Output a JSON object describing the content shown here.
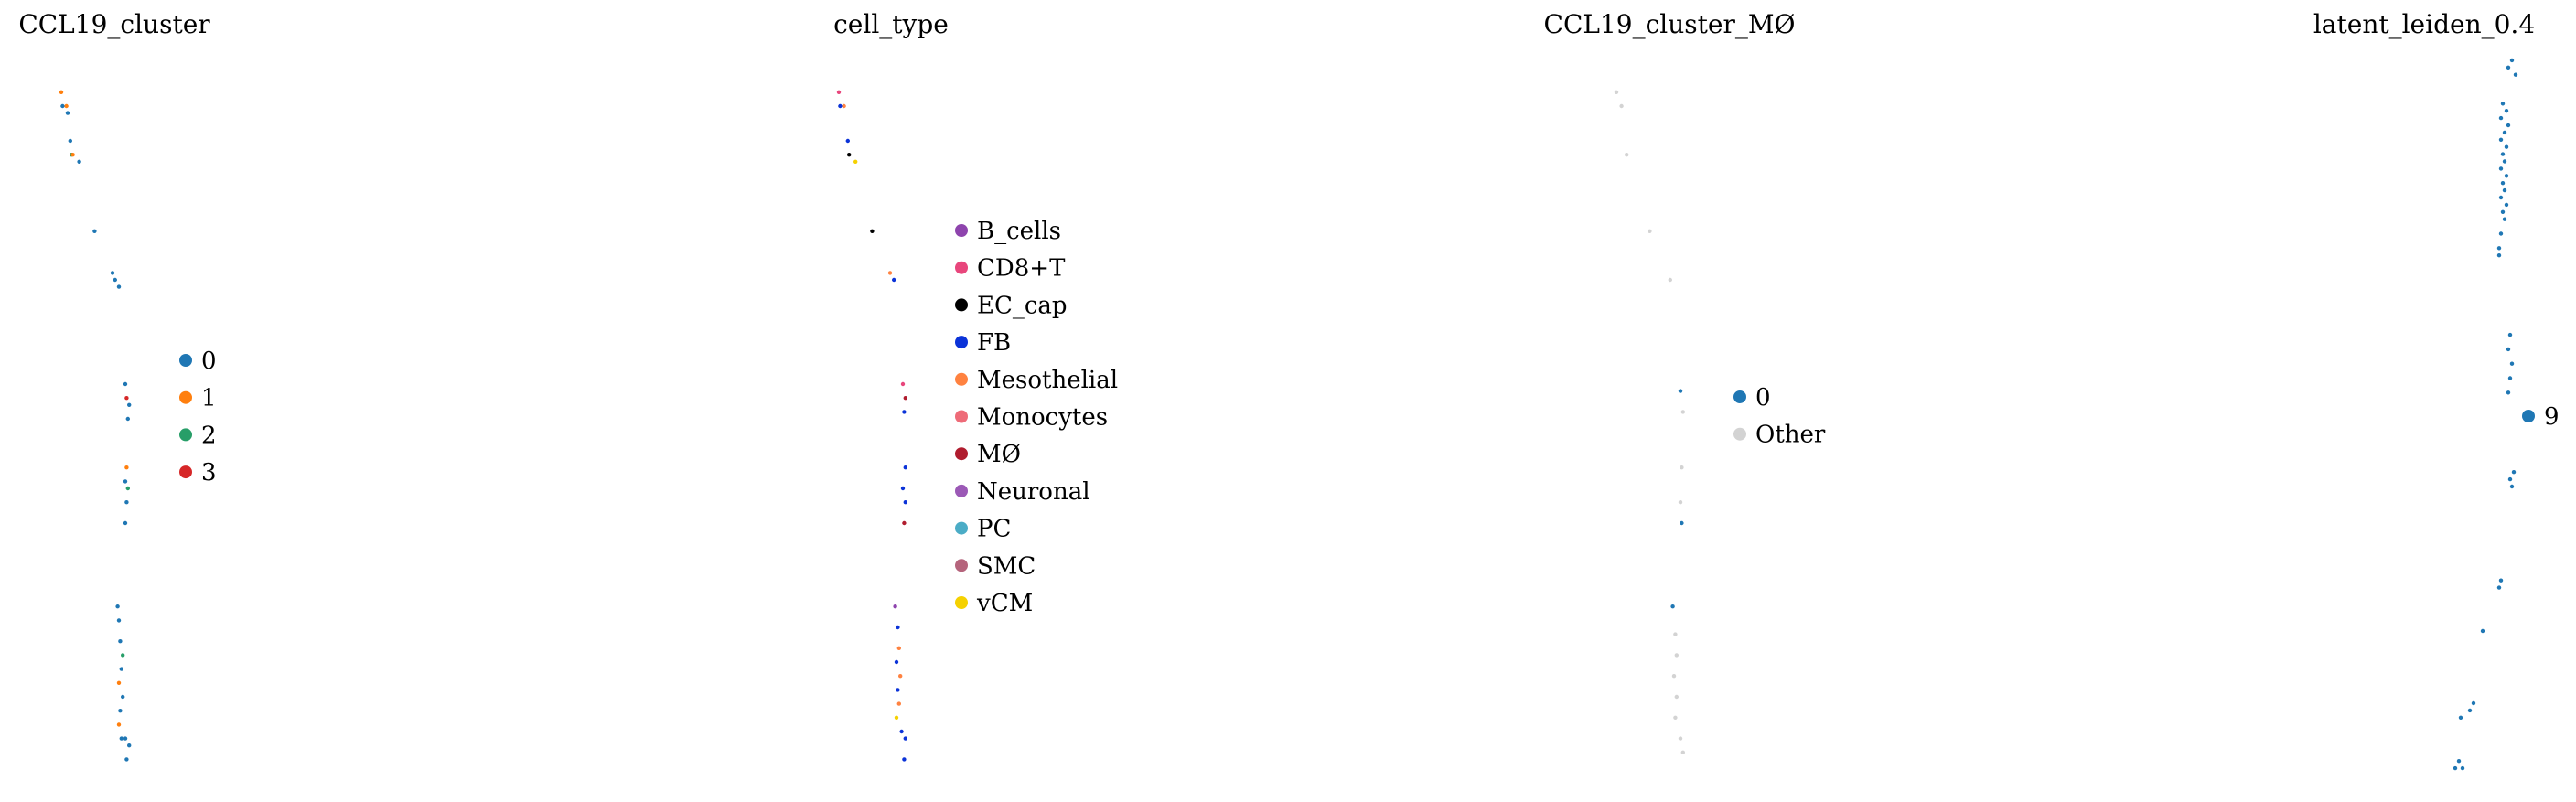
{
  "chart_data": [
    {
      "type": "scatter",
      "title": "CCL19_cluster",
      "legend": {
        "placement": "right",
        "entries": [
          {
            "label": "0",
            "color": "#1f77b4"
          },
          {
            "label": "1",
            "color": "#ff7f0e"
          },
          {
            "label": "2",
            "color": "#279e68"
          },
          {
            "label": "3",
            "color": "#d62728"
          }
        ]
      },
      "axes": "off",
      "grid": false,
      "xlim": [
        0,
        1
      ],
      "ylim": [
        0,
        1
      ],
      "points": [
        {
          "x": 0.05,
          "y": 0.97,
          "group": "1"
        },
        {
          "x": 0.06,
          "y": 0.95,
          "group": "0"
        },
        {
          "x": 0.09,
          "y": 0.95,
          "group": "1"
        },
        {
          "x": 0.1,
          "y": 0.94,
          "group": "0"
        },
        {
          "x": 0.12,
          "y": 0.9,
          "group": "0"
        },
        {
          "x": 0.13,
          "y": 0.88,
          "group": "2"
        },
        {
          "x": 0.14,
          "y": 0.88,
          "group": "1"
        },
        {
          "x": 0.19,
          "y": 0.87,
          "group": "0"
        },
        {
          "x": 0.31,
          "y": 0.77,
          "group": "0"
        },
        {
          "x": 0.45,
          "y": 0.71,
          "group": "0"
        },
        {
          "x": 0.47,
          "y": 0.7,
          "group": "0"
        },
        {
          "x": 0.5,
          "y": 0.69,
          "group": "0"
        },
        {
          "x": 0.55,
          "y": 0.55,
          "group": "0"
        },
        {
          "x": 0.56,
          "y": 0.53,
          "group": "3"
        },
        {
          "x": 0.58,
          "y": 0.52,
          "group": "0"
        },
        {
          "x": 0.57,
          "y": 0.5,
          "group": "0"
        },
        {
          "x": 0.56,
          "y": 0.43,
          "group": "1"
        },
        {
          "x": 0.55,
          "y": 0.41,
          "group": "0"
        },
        {
          "x": 0.57,
          "y": 0.4,
          "group": "2"
        },
        {
          "x": 0.56,
          "y": 0.38,
          "group": "0"
        },
        {
          "x": 0.55,
          "y": 0.35,
          "group": "0"
        },
        {
          "x": 0.49,
          "y": 0.23,
          "group": "0"
        },
        {
          "x": 0.5,
          "y": 0.21,
          "group": "0"
        },
        {
          "x": 0.51,
          "y": 0.18,
          "group": "0"
        },
        {
          "x": 0.53,
          "y": 0.16,
          "group": "2"
        },
        {
          "x": 0.52,
          "y": 0.14,
          "group": "0"
        },
        {
          "x": 0.5,
          "y": 0.12,
          "group": "1"
        },
        {
          "x": 0.53,
          "y": 0.1,
          "group": "0"
        },
        {
          "x": 0.51,
          "y": 0.08,
          "group": "0"
        },
        {
          "x": 0.5,
          "y": 0.06,
          "group": "1"
        },
        {
          "x": 0.52,
          "y": 0.04,
          "group": "0"
        },
        {
          "x": 0.55,
          "y": 0.04,
          "group": "0"
        },
        {
          "x": 0.58,
          "y": 0.03,
          "group": "0"
        },
        {
          "x": 0.56,
          "y": 0.01,
          "group": "0"
        }
      ]
    },
    {
      "type": "scatter",
      "title": "cell_type",
      "legend": {
        "placement": "right",
        "entries": [
          {
            "label": "B_cells",
            "color": "#8e44ad"
          },
          {
            "label": "CD8+T",
            "color": "#e8467c"
          },
          {
            "label": "EC_cap",
            "color": "#000000"
          },
          {
            "label": "FB",
            "color": "#0b33d8"
          },
          {
            "label": "Mesothelial",
            "color": "#ff8240"
          },
          {
            "label": "Monocytes",
            "color": "#ee6b78"
          },
          {
            "label": "MØ",
            "color": "#b01c2e"
          },
          {
            "label": "Neuronal",
            "color": "#9b59b6"
          },
          {
            "label": "PC",
            "color": "#4bacc6"
          },
          {
            "label": "SMC",
            "color": "#b5647c"
          },
          {
            "label": "vCM",
            "color": "#f5d100"
          }
        ]
      },
      "axes": "off",
      "grid": false,
      "xlim": [
        0,
        1
      ],
      "ylim": [
        0,
        1
      ],
      "points": [
        {
          "x": 0.05,
          "y": 0.97,
          "group": "CD8+T"
        },
        {
          "x": 0.06,
          "y": 0.95,
          "group": "FB"
        },
        {
          "x": 0.09,
          "y": 0.95,
          "group": "Mesothelial"
        },
        {
          "x": 0.12,
          "y": 0.9,
          "group": "FB"
        },
        {
          "x": 0.13,
          "y": 0.88,
          "group": "EC_cap"
        },
        {
          "x": 0.18,
          "y": 0.87,
          "group": "vCM"
        },
        {
          "x": 0.31,
          "y": 0.77,
          "group": "EC_cap"
        },
        {
          "x": 0.45,
          "y": 0.71,
          "group": "Mesothelial"
        },
        {
          "x": 0.48,
          "y": 0.7,
          "group": "FB"
        },
        {
          "x": 0.55,
          "y": 0.55,
          "group": "CD8+T"
        },
        {
          "x": 0.57,
          "y": 0.53,
          "group": "MØ"
        },
        {
          "x": 0.56,
          "y": 0.51,
          "group": "FB"
        },
        {
          "x": 0.57,
          "y": 0.43,
          "group": "FB"
        },
        {
          "x": 0.55,
          "y": 0.4,
          "group": "FB"
        },
        {
          "x": 0.57,
          "y": 0.38,
          "group": "FB"
        },
        {
          "x": 0.56,
          "y": 0.35,
          "group": "MØ"
        },
        {
          "x": 0.49,
          "y": 0.23,
          "group": "B_cells"
        },
        {
          "x": 0.51,
          "y": 0.2,
          "group": "FB"
        },
        {
          "x": 0.52,
          "y": 0.17,
          "group": "Mesothelial"
        },
        {
          "x": 0.5,
          "y": 0.15,
          "group": "FB"
        },
        {
          "x": 0.53,
          "y": 0.13,
          "group": "Mesothelial"
        },
        {
          "x": 0.51,
          "y": 0.11,
          "group": "FB"
        },
        {
          "x": 0.52,
          "y": 0.09,
          "group": "Mesothelial"
        },
        {
          "x": 0.5,
          "y": 0.07,
          "group": "vCM"
        },
        {
          "x": 0.54,
          "y": 0.05,
          "group": "FB"
        },
        {
          "x": 0.57,
          "y": 0.04,
          "group": "FB"
        },
        {
          "x": 0.56,
          "y": 0.01,
          "group": "FB"
        }
      ]
    },
    {
      "type": "scatter",
      "title": "CCL19_cluster_MØ",
      "legend": {
        "placement": "right",
        "entries": [
          {
            "label": "0",
            "color": "#1f77b4"
          },
          {
            "label": "Other",
            "color": "#d3d3d3"
          }
        ]
      },
      "axes": "off",
      "grid": false,
      "xlim": [
        0,
        1
      ],
      "ylim": [
        0,
        1
      ],
      "points": [
        {
          "x": 0.05,
          "y": 0.97,
          "group": "Other"
        },
        {
          "x": 0.09,
          "y": 0.95,
          "group": "Other"
        },
        {
          "x": 0.13,
          "y": 0.88,
          "group": "Other"
        },
        {
          "x": 0.31,
          "y": 0.77,
          "group": "Other"
        },
        {
          "x": 0.47,
          "y": 0.7,
          "group": "Other"
        },
        {
          "x": 0.55,
          "y": 0.54,
          "group": "0"
        },
        {
          "x": 0.57,
          "y": 0.51,
          "group": "Other"
        },
        {
          "x": 0.56,
          "y": 0.43,
          "group": "Other"
        },
        {
          "x": 0.55,
          "y": 0.38,
          "group": "Other"
        },
        {
          "x": 0.56,
          "y": 0.35,
          "group": "0"
        },
        {
          "x": 0.49,
          "y": 0.23,
          "group": "0"
        },
        {
          "x": 0.51,
          "y": 0.19,
          "group": "Other"
        },
        {
          "x": 0.52,
          "y": 0.16,
          "group": "Other"
        },
        {
          "x": 0.5,
          "y": 0.13,
          "group": "Other"
        },
        {
          "x": 0.52,
          "y": 0.1,
          "group": "Other"
        },
        {
          "x": 0.51,
          "y": 0.07,
          "group": "Other"
        },
        {
          "x": 0.55,
          "y": 0.04,
          "group": "Other"
        },
        {
          "x": 0.57,
          "y": 0.02,
          "group": "Other"
        }
      ]
    },
    {
      "type": "scatter",
      "title": "latent_leiden_0.4",
      "legend": {
        "placement": "right",
        "entries": [
          {
            "label": "9",
            "color": "#1f77b4"
          }
        ]
      },
      "axes": "off",
      "grid": false,
      "xlim": [
        0,
        1
      ],
      "ylim": [
        0,
        1
      ],
      "points": [
        {
          "x": 0.88,
          "y": 0.99,
          "group": "9"
        },
        {
          "x": 0.86,
          "y": 0.98,
          "group": "9"
        },
        {
          "x": 0.9,
          "y": 0.97,
          "group": "9"
        },
        {
          "x": 0.83,
          "y": 0.93,
          "group": "9"
        },
        {
          "x": 0.85,
          "y": 0.92,
          "group": "9"
        },
        {
          "x": 0.82,
          "y": 0.91,
          "group": "9"
        },
        {
          "x": 0.86,
          "y": 0.9,
          "group": "9"
        },
        {
          "x": 0.84,
          "y": 0.89,
          "group": "9"
        },
        {
          "x": 0.82,
          "y": 0.88,
          "group": "9"
        },
        {
          "x": 0.85,
          "y": 0.87,
          "group": "9"
        },
        {
          "x": 0.83,
          "y": 0.86,
          "group": "9"
        },
        {
          "x": 0.84,
          "y": 0.85,
          "group": "9"
        },
        {
          "x": 0.82,
          "y": 0.84,
          "group": "9"
        },
        {
          "x": 0.85,
          "y": 0.83,
          "group": "9"
        },
        {
          "x": 0.83,
          "y": 0.82,
          "group": "9"
        },
        {
          "x": 0.84,
          "y": 0.81,
          "group": "9"
        },
        {
          "x": 0.82,
          "y": 0.8,
          "group": "9"
        },
        {
          "x": 0.85,
          "y": 0.79,
          "group": "9"
        },
        {
          "x": 0.83,
          "y": 0.78,
          "group": "9"
        },
        {
          "x": 0.84,
          "y": 0.77,
          "group": "9"
        },
        {
          "x": 0.82,
          "y": 0.75,
          "group": "9"
        },
        {
          "x": 0.81,
          "y": 0.73,
          "group": "9"
        },
        {
          "x": 0.81,
          "y": 0.72,
          "group": "9"
        },
        {
          "x": 0.87,
          "y": 0.61,
          "group": "9"
        },
        {
          "x": 0.86,
          "y": 0.59,
          "group": "9"
        },
        {
          "x": 0.88,
          "y": 0.57,
          "group": "9"
        },
        {
          "x": 0.87,
          "y": 0.55,
          "group": "9"
        },
        {
          "x": 0.86,
          "y": 0.53,
          "group": "9"
        },
        {
          "x": 0.89,
          "y": 0.42,
          "group": "9"
        },
        {
          "x": 0.87,
          "y": 0.41,
          "group": "9"
        },
        {
          "x": 0.88,
          "y": 0.4,
          "group": "9"
        },
        {
          "x": 0.82,
          "y": 0.27,
          "group": "9"
        },
        {
          "x": 0.81,
          "y": 0.26,
          "group": "9"
        },
        {
          "x": 0.72,
          "y": 0.2,
          "group": "9"
        },
        {
          "x": 0.67,
          "y": 0.1,
          "group": "9"
        },
        {
          "x": 0.65,
          "y": 0.09,
          "group": "9"
        },
        {
          "x": 0.6,
          "y": 0.08,
          "group": "9"
        },
        {
          "x": 0.59,
          "y": 0.02,
          "group": "9"
        },
        {
          "x": 0.61,
          "y": 0.01,
          "group": "9"
        },
        {
          "x": 0.57,
          "y": 0.01,
          "group": "9"
        }
      ]
    }
  ]
}
